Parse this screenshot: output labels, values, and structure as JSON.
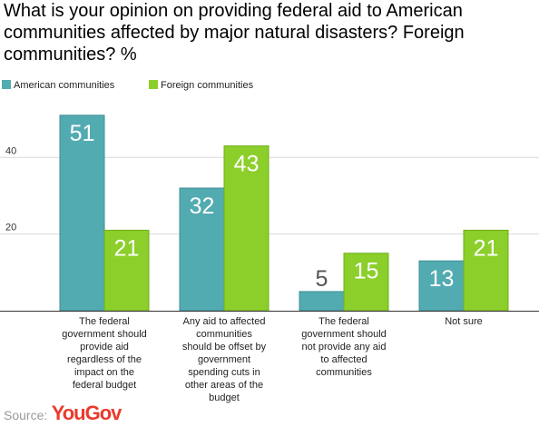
{
  "title": "What is your opinion on providing federal aid to American communities affected by major natural disasters? Foreign communities? %",
  "source": {
    "label": "Source:",
    "logo": "YouGov"
  },
  "colors": {
    "american": "#52abb1",
    "foreign": "#8ccf2b",
    "axis": "#333333",
    "grid": "#d9d9d9",
    "axis_text": "#333333"
  },
  "chart_data": {
    "type": "bar",
    "title": "What is your opinion on providing federal aid to American communities affected by major natural disasters? Foreign communities? %",
    "categories": [
      "The federal government should provide aid regardless of the impact on the federal budget",
      "Any aid to affected communities should be offset by government spending cuts in other areas of the budget",
      "The federal government should not provide any aid to affected communities",
      "Not sure"
    ],
    "category_lines": [
      [
        "The federal",
        "government should",
        "provide aid",
        "regardless of the",
        "impact on the",
        "federal budget"
      ],
      [
        "Any aid to affected",
        "communities",
        "should be offset by",
        "government",
        "spending cuts in",
        "other areas of the",
        "budget"
      ],
      [
        "The federal",
        "government should",
        "not provide any aid",
        "to affected",
        "communities"
      ],
      [
        "Not sure"
      ]
    ],
    "series": [
      {
        "name": "American communities",
        "values": [
          51,
          32,
          5,
          13
        ]
      },
      {
        "name": "Foreign communities",
        "values": [
          21,
          43,
          15,
          21
        ]
      }
    ],
    "ylim": [
      0,
      55
    ],
    "yticks": [
      20,
      40
    ],
    "legend_position": "top-left",
    "grid": true,
    "xlabel": "",
    "ylabel": ""
  }
}
